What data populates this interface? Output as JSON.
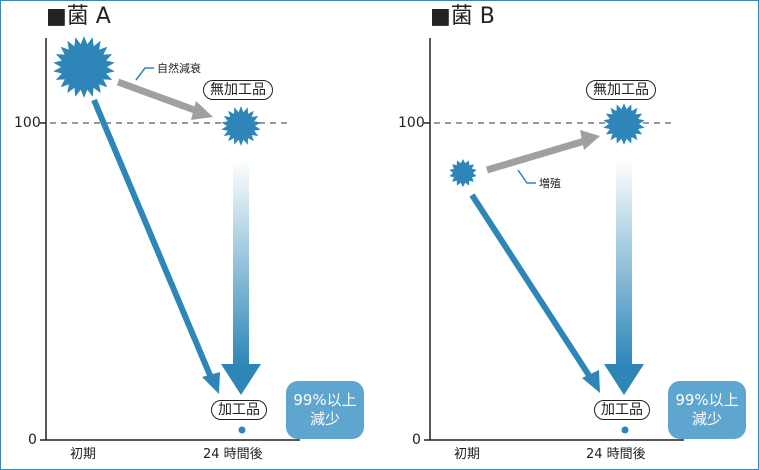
{
  "panels": [
    {
      "title": "■菌 A",
      "y_ticks": [
        "100",
        "0"
      ],
      "x_labels": [
        "初期",
        "24 時間後"
      ],
      "note": "自然減衰",
      "untreated_label": "無加工品",
      "treated_label": "加工品",
      "callout": [
        "99%以上",
        "減少"
      ]
    },
    {
      "title": "■菌 B",
      "y_ticks": [
        "100",
        "0"
      ],
      "x_labels": [
        "初期",
        "24 時間後"
      ],
      "note": "増殖",
      "untreated_label": "無加工品",
      "treated_label": "加工品",
      "callout": [
        "99%以上",
        "減少"
      ]
    }
  ],
  "colors": {
    "bacteria": "#2e86b8",
    "arrow_blue": "#2e86b8",
    "arrow_gray": "#a0a0a0",
    "callout": "#5ea6cf",
    "dashed": "#999999"
  }
}
